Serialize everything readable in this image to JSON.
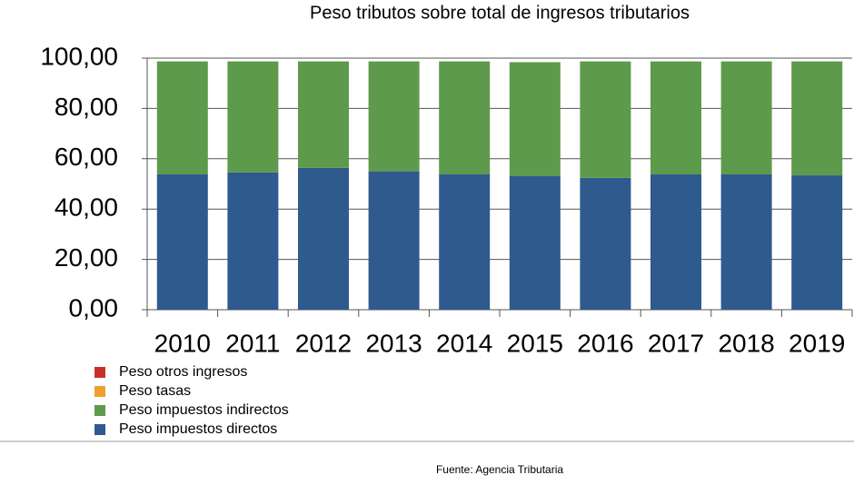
{
  "chart_data": {
    "type": "bar",
    "stacked": true,
    "title": "Peso tributos sobre total de ingresos tributarios",
    "categories": [
      "2010",
      "2011",
      "2012",
      "2013",
      "2014",
      "2015",
      "2016",
      "2017",
      "2018",
      "2019"
    ],
    "series": [
      {
        "name": "Peso impuestos directos",
        "color": "#2e5a8e",
        "values": [
          53.8,
          54.6,
          56.4,
          55.0,
          53.8,
          53.2,
          52.4,
          53.8,
          53.8,
          53.4
        ]
      },
      {
        "name": "Peso impuestos indirectos",
        "color": "#5e9a4b",
        "values": [
          44.9,
          44.1,
          42.3,
          43.7,
          44.9,
          45.2,
          46.3,
          44.9,
          44.9,
          45.3
        ]
      },
      {
        "name": "Peso tasas",
        "color": "#f0a030",
        "values": [
          0,
          0,
          0,
          0,
          0,
          0,
          0,
          0,
          0,
          0
        ]
      },
      {
        "name": "Peso otros ingresos",
        "color": "#c8302c",
        "values": [
          0,
          0,
          0,
          0,
          0,
          0,
          0,
          0,
          0,
          0
        ]
      }
    ],
    "ylim": [
      0,
      100
    ],
    "yticks": [
      {
        "value": 0,
        "label": "0,00"
      },
      {
        "value": 20,
        "label": "20,00"
      },
      {
        "value": 40,
        "label": "40,00"
      },
      {
        "value": 60,
        "label": "60,00"
      },
      {
        "value": 80,
        "label": "80,00"
      },
      {
        "value": 100,
        "label": "100,00"
      }
    ],
    "grid": true,
    "source": "Fuente: Agencia Tributaria"
  }
}
